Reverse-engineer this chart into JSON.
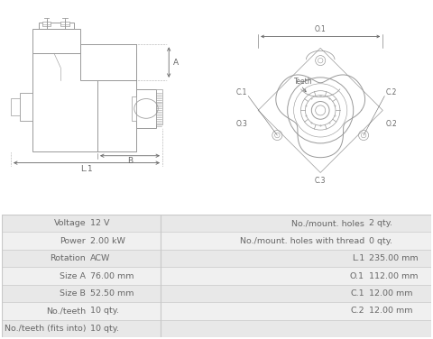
{
  "bg_color": "#ffffff",
  "table_bg_alt1": "#e8e8e8",
  "table_bg_alt2": "#f0f0f0",
  "table_border": "#c8c8c8",
  "lc": "#999999",
  "dc": "#666666",
  "text_color": "#666666",
  "font_size_table": 6.8,
  "table_data": [
    [
      "Voltage",
      "12 V",
      "No./mount. holes",
      "2 qty."
    ],
    [
      "Power",
      "2.00 kW",
      "No./mount. holes with thread",
      "0 qty."
    ],
    [
      "Rotation",
      "ACW",
      "L.1",
      "235.00 mm"
    ],
    [
      "Size A",
      "76.00 mm",
      "O.1",
      "112.00 mm"
    ],
    [
      "Size B",
      "52.50 mm",
      "C.1",
      "12.00 mm"
    ],
    [
      "No./teeth",
      "10 qty.",
      "C.2",
      "12.00 mm"
    ],
    [
      "No./teeth (fits into)",
      "10 qty.",
      "",
      ""
    ]
  ]
}
